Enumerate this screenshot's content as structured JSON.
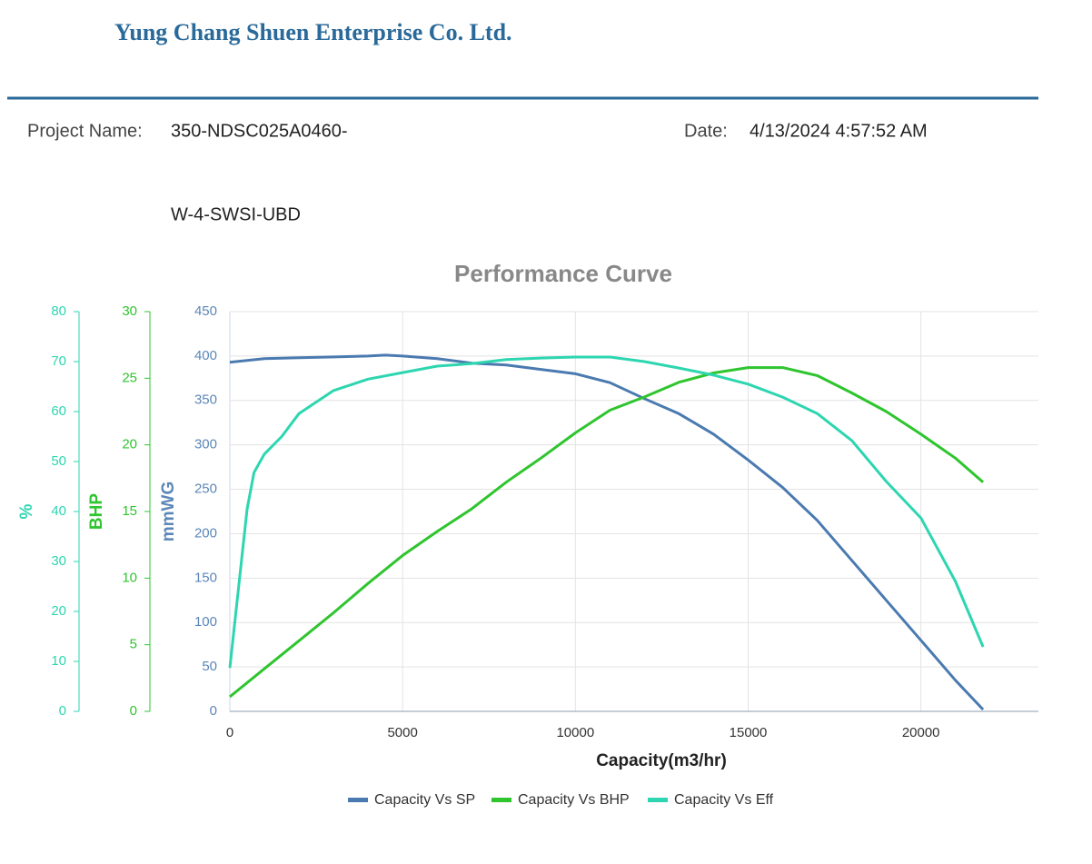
{
  "header": {
    "company": "Yung Chang Shuen Enterprise Co. Ltd.",
    "project_label": "Project Name:",
    "project_name_lines": [
      "350-NDSC025A0460-",
      "W-4-SWSI-UBD"
    ],
    "date_label": "Date:",
    "date": "4/13/2024 4:57:52 AM"
  },
  "chart_data": {
    "type": "line",
    "title": "Performance Curve",
    "xlabel": "Capacity(m3/hr)",
    "ylabel": "mmWG",
    "y2label": "BHP",
    "y3label": "%",
    "xlim": [
      0,
      23400
    ],
    "xticks": [
      0,
      5000,
      10000,
      15000,
      20000
    ],
    "ylim": [
      0,
      450
    ],
    "yticks": [
      0,
      50,
      100,
      150,
      200,
      250,
      300,
      350,
      400,
      450
    ],
    "y2lim": [
      0,
      30
    ],
    "y2ticks": [
      0,
      5,
      10,
      15,
      20,
      25,
      30
    ],
    "y3lim": [
      0,
      80
    ],
    "y3ticks": [
      0,
      10,
      20,
      30,
      40,
      50,
      60,
      70,
      80
    ],
    "grid": true,
    "legend": "bottom",
    "series": [
      {
        "name": "Capacity Vs SP",
        "color": "#4a7ab0",
        "axis": "y",
        "x": [
          0,
          1000,
          2000,
          3000,
          4000,
          4500,
          5000,
          6000,
          7000,
          8000,
          9000,
          10000,
          11000,
          12000,
          13000,
          14000,
          15000,
          16000,
          17000,
          18000,
          19000,
          20000,
          21000,
          21800
        ],
        "values": [
          393,
          397,
          398,
          399,
          400,
          401,
          400,
          397,
          392,
          390,
          385,
          380,
          370,
          352,
          335,
          312,
          283,
          252,
          215,
          170,
          125,
          80,
          35,
          2
        ]
      },
      {
        "name": "Capacity Vs BHP",
        "color": "#2ec52e",
        "axis": "y2",
        "x": [
          0,
          1000,
          2000,
          3000,
          4000,
          5000,
          6000,
          7000,
          8000,
          9000,
          10000,
          11000,
          12000,
          13000,
          14000,
          15000,
          16000,
          17000,
          18000,
          19000,
          20000,
          21000,
          21800
        ],
        "values": [
          1.1,
          3.2,
          5.3,
          7.4,
          9.6,
          11.7,
          13.5,
          15.2,
          17.2,
          19.0,
          20.9,
          22.6,
          23.6,
          24.7,
          25.4,
          25.8,
          25.8,
          25.2,
          23.9,
          22.5,
          20.8,
          19.0,
          17.2
        ]
      },
      {
        "name": "Capacity Vs Eff",
        "color": "#2dd6b0",
        "axis": "y3",
        "x": [
          0,
          500,
          700,
          1000,
          1500,
          2000,
          3000,
          4000,
          5000,
          6000,
          7000,
          8000,
          9000,
          10000,
          11000,
          12000,
          13000,
          14000,
          15000,
          16000,
          17000,
          18000,
          19000,
          20000,
          21000,
          21800
        ],
        "values": [
          8.7,
          40.5,
          47.8,
          51.5,
          55,
          59.6,
          64.2,
          66.5,
          67.8,
          69.1,
          69.6,
          70.4,
          70.7,
          70.9,
          70.9,
          70,
          68.7,
          67.3,
          65.5,
          62.9,
          59.6,
          54.2,
          46,
          38.7,
          26,
          12.9
        ]
      }
    ]
  }
}
